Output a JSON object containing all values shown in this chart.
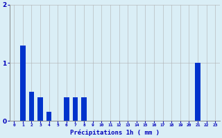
{
  "values": [
    0.0,
    1.3,
    0.5,
    0.4,
    0.15,
    0.0,
    0.4,
    0.4,
    0.4,
    0.0,
    0.0,
    0.0,
    0.0,
    0.0,
    0.0,
    0.0,
    0.0,
    0.0,
    0.0,
    0.0,
    0.0,
    1.0,
    0.0,
    0.0
  ],
  "bar_color": "#0033cc",
  "background_color": "#daeef6",
  "grid_color": "#b0b0b0",
  "xlabel": "Précipitations 1h ( mm )",
  "xlabel_color": "#0000bb",
  "tick_color": "#0000bb",
  "ylim": [
    0,
    2
  ],
  "yticks": [
    0,
    1,
    2
  ],
  "n_hours": 24,
  "bar_width": 0.6
}
